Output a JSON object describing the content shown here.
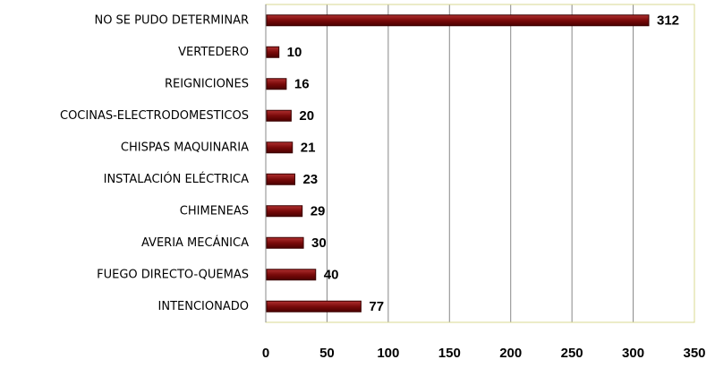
{
  "chart_data": {
    "type": "bar",
    "orientation": "horizontal",
    "categories": [
      "NO SE PUDO DETERMINAR",
      "VERTEDERO",
      "REIGNICIONES",
      "COCINAS-ELECTRODOMESTICOS",
      "CHISPAS MAQUINARIA",
      "INSTALACIÓN ELÉCTRICA",
      "CHIMENEAS",
      "AVERIA MECÁNICA",
      "FUEGO DIRECTO-QUEMAS",
      "INTENCIONADO"
    ],
    "values": [
      312,
      10,
      16,
      20,
      21,
      23,
      29,
      30,
      40,
      77
    ],
    "color": "#7a0a0a",
    "xlim": [
      0,
      350
    ],
    "xticks": [
      0,
      50,
      100,
      150,
      200,
      250,
      300,
      350
    ],
    "grid": true
  }
}
